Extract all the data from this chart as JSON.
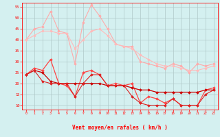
{
  "x": [
    0,
    1,
    2,
    3,
    4,
    5,
    6,
    7,
    8,
    9,
    10,
    11,
    12,
    13,
    14,
    15,
    16,
    17,
    18,
    19,
    20,
    21,
    22,
    23
  ],
  "series": [
    {
      "name": "rafales_max",
      "color": "#ffaaaa",
      "linewidth": 0.8,
      "markersize": 2.0,
      "values": [
        40,
        45,
        46,
        53,
        44,
        43,
        29,
        48,
        56,
        51,
        45,
        38,
        37,
        37,
        30,
        29,
        28,
        27,
        29,
        28,
        25,
        29,
        28,
        29
      ]
    },
    {
      "name": "rafales_mean",
      "color": "#ffbbbb",
      "linewidth": 0.8,
      "markersize": 2.0,
      "values": [
        40,
        42,
        44,
        44,
        43,
        43,
        36,
        40,
        44,
        45,
        42,
        38,
        37,
        36,
        33,
        31,
        29,
        28,
        28,
        27,
        26,
        26,
        27,
        28
      ]
    },
    {
      "name": "vent_max",
      "color": "#ff4444",
      "linewidth": 0.9,
      "markersize": 2.0,
      "values": [
        24,
        27,
        26,
        31,
        20,
        19,
        14,
        25,
        26,
        24,
        19,
        20,
        19,
        20,
        11,
        14,
        13,
        11,
        13,
        10,
        10,
        10,
        17,
        18
      ]
    },
    {
      "name": "vent_mean",
      "color": "#cc0000",
      "linewidth": 0.9,
      "markersize": 2.0,
      "values": [
        24,
        26,
        25,
        21,
        20,
        20,
        20,
        20,
        20,
        20,
        19,
        19,
        19,
        18,
        17,
        17,
        16,
        16,
        16,
        16,
        16,
        16,
        17,
        17
      ]
    },
    {
      "name": "vent_min",
      "color": "#dd2222",
      "linewidth": 0.8,
      "markersize": 2.0,
      "values": [
        24,
        26,
        21,
        20,
        20,
        20,
        14,
        20,
        24,
        24,
        19,
        19,
        19,
        14,
        11,
        10,
        10,
        10,
        13,
        10,
        10,
        10,
        15,
        17
      ]
    }
  ],
  "ylim": [
    8,
    57
  ],
  "yticks": [
    10,
    15,
    20,
    25,
    30,
    35,
    40,
    45,
    50,
    55
  ],
  "xlim": [
    -0.5,
    23.5
  ],
  "xticks": [
    0,
    1,
    2,
    3,
    4,
    5,
    6,
    7,
    8,
    9,
    10,
    11,
    12,
    13,
    14,
    15,
    16,
    17,
    18,
    19,
    20,
    21,
    22,
    23
  ],
  "xlabel": "Vent moyen/en rafales ( km/h )",
  "bg_color": "#d4f0f0",
  "grid_color": "#b0c8c8",
  "axis_color": "#ff0000",
  "xlabel_color": "#ff0000",
  "tick_color": "#ff0000",
  "arrow_color": "#ff8888",
  "arrow_directions": [
    45,
    45,
    30,
    30,
    0,
    0,
    0,
    0,
    0,
    0,
    0,
    0,
    0,
    0,
    0,
    0,
    0,
    0,
    0,
    0,
    45,
    45,
    45,
    45
  ]
}
